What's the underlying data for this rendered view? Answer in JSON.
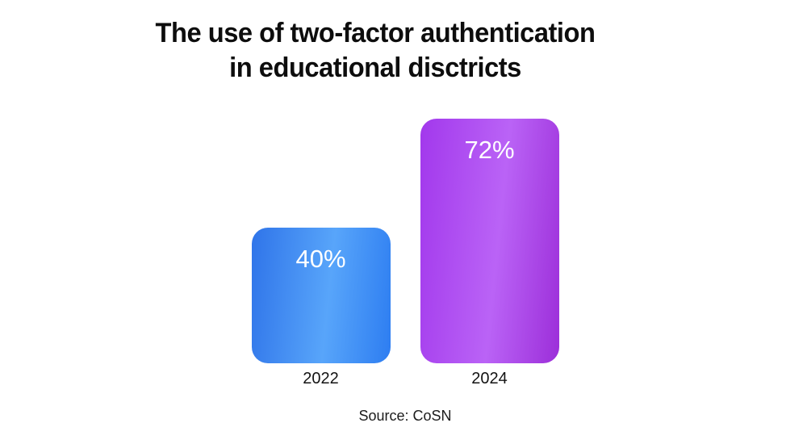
{
  "title": {
    "line1": "The use of two-factor authentication",
    "line2": "in educational disctricts"
  },
  "source": "Source: CoSN",
  "chart_data": {
    "type": "bar",
    "title": "The use of two-factor authentication in educational disctricts",
    "categories": [
      "2022",
      "2024"
    ],
    "values": [
      40,
      72
    ],
    "value_labels": [
      "40%",
      "72%"
    ],
    "unit": "%",
    "value_range": [
      0,
      100
    ],
    "grid": false,
    "legend": false,
    "background_color": "#ffffff",
    "title_color": "#0d0d0d",
    "label_text_color": "#ffffff",
    "axis_label_color": "#131313",
    "bar_gradients": [
      {
        "name": "blue",
        "from": "#2f74e9",
        "mid": "#58a5fa",
        "to": "#2d7df1"
      },
      {
        "name": "purple",
        "from": "#a238ec",
        "mid": "#ba63f6",
        "to": "#9c2ed9"
      }
    ],
    "source": "Source: CoSN"
  }
}
